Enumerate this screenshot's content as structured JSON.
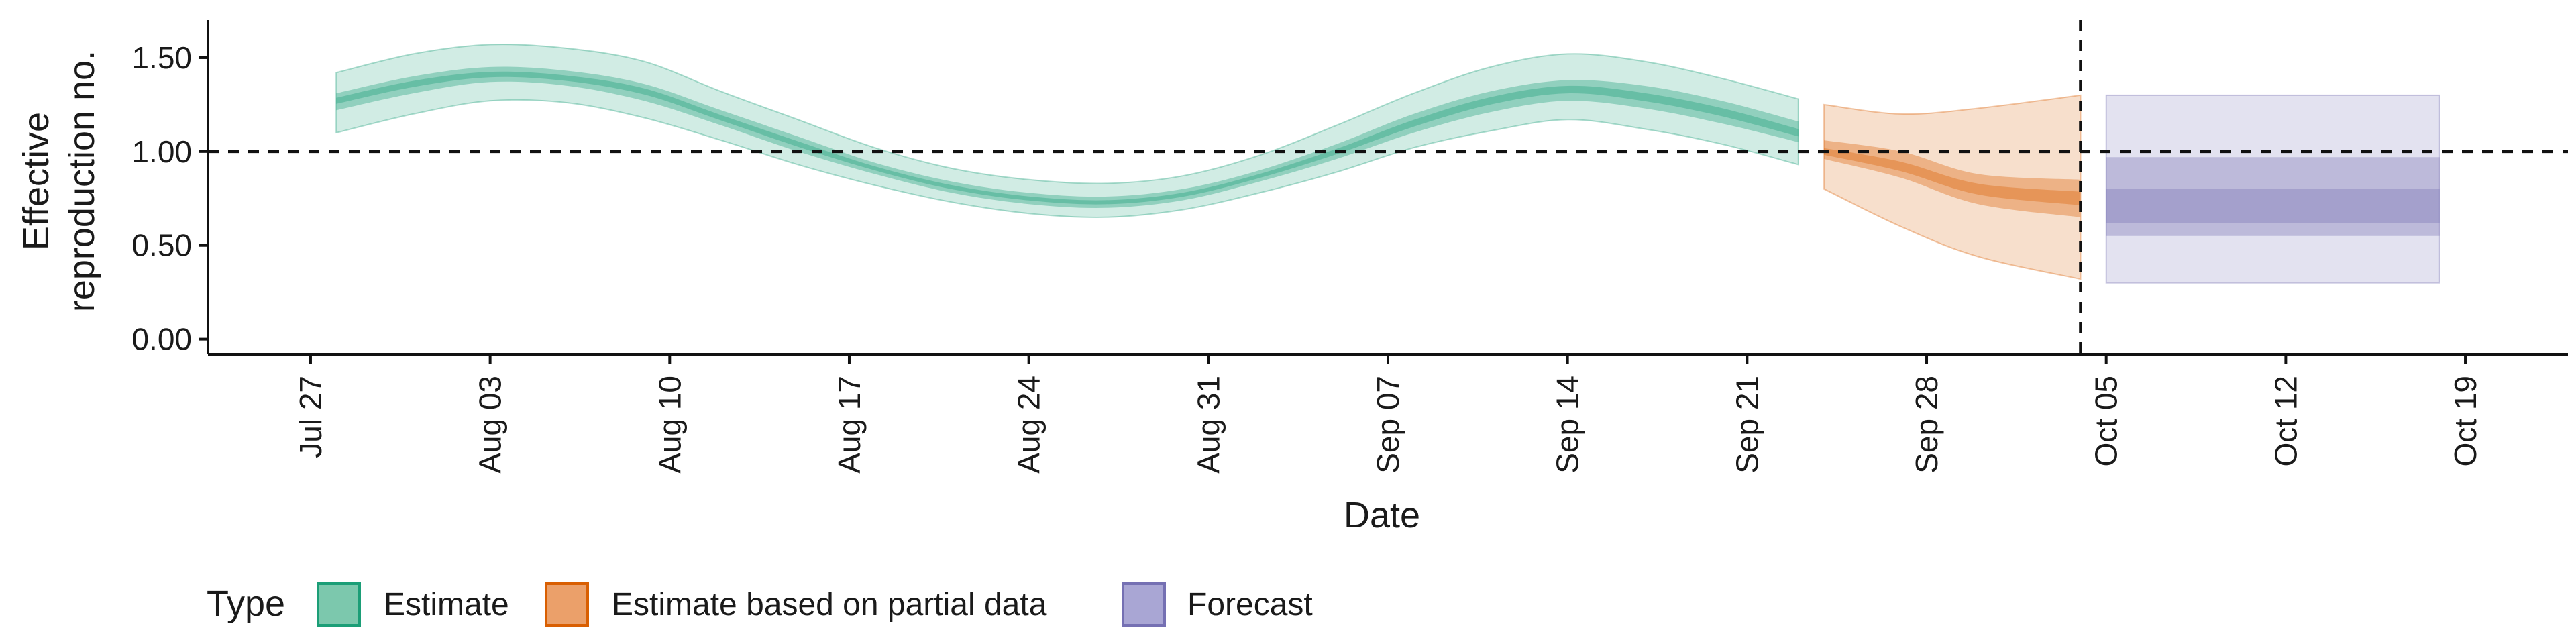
{
  "chart_data": {
    "type": "area",
    "xlabel": "Date",
    "ylabel_lines": [
      "Effective",
      "reproduction no."
    ],
    "x_domain": [
      "2021-07-23",
      "2021-10-23"
    ],
    "ylim": [
      -0.08,
      1.7
    ],
    "y_ticks": [
      0.0,
      0.5,
      1.0,
      1.5
    ],
    "y_tick_labels": [
      "0.00",
      "0.50",
      "1.00",
      "1.50"
    ],
    "x_ticks": [
      "2021-07-27",
      "2021-08-03",
      "2021-08-10",
      "2021-08-17",
      "2021-08-24",
      "2021-08-31",
      "2021-09-07",
      "2021-09-14",
      "2021-09-21",
      "2021-09-28",
      "2021-10-05",
      "2021-10-12",
      "2021-10-19"
    ],
    "x_tick_labels": [
      "Jul 27",
      "Aug 03",
      "Aug 10",
      "Aug 17",
      "Aug 24",
      "Aug 31",
      "Sep 07",
      "Sep 14",
      "Sep 21",
      "Sep 28",
      "Oct 05",
      "Oct 12",
      "Oct 19"
    ],
    "reference_lines": {
      "hline_y": 1.0,
      "vline_x": "2021-10-04"
    },
    "grid": false,
    "legend": {
      "title": "Type",
      "position": "bottom-left",
      "items": [
        {
          "label": "Estimate",
          "fill": "#7cc8ad",
          "stroke": "#1b9e77"
        },
        {
          "label": "Estimate based on partial data",
          "fill": "#eba06a",
          "stroke": "#d95f02"
        },
        {
          "label": "Forecast",
          "fill": "#a9a6d4",
          "stroke": "#7570b3"
        }
      ]
    },
    "series": [
      {
        "name": "Estimate",
        "color": "#1b9e77",
        "x": [
          "2021-07-28",
          "2021-07-31",
          "2021-08-03",
          "2021-08-06",
          "2021-08-09",
          "2021-08-12",
          "2021-08-15",
          "2021-08-18",
          "2021-08-21",
          "2021-08-24",
          "2021-08-27",
          "2021-08-30",
          "2021-09-02",
          "2021-09-05",
          "2021-09-08",
          "2021-09-11",
          "2021-09-14",
          "2021-09-17",
          "2021-09-20",
          "2021-09-23"
        ],
        "median": [
          1.27,
          1.36,
          1.41,
          1.39,
          1.32,
          1.18,
          1.04,
          0.91,
          0.81,
          0.75,
          0.73,
          0.77,
          0.87,
          1.0,
          1.15,
          1.27,
          1.33,
          1.29,
          1.21,
          1.1
        ],
        "lower_50": [
          1.22,
          1.31,
          1.37,
          1.35,
          1.27,
          1.14,
          1.0,
          0.88,
          0.78,
          0.72,
          0.7,
          0.74,
          0.84,
          0.96,
          1.1,
          1.21,
          1.27,
          1.23,
          1.15,
          1.05
        ],
        "upper_50": [
          1.31,
          1.4,
          1.45,
          1.43,
          1.36,
          1.22,
          1.08,
          0.94,
          0.84,
          0.78,
          0.76,
          0.8,
          0.9,
          1.04,
          1.2,
          1.32,
          1.38,
          1.35,
          1.27,
          1.16
        ],
        "lower_90": [
          1.1,
          1.2,
          1.27,
          1.26,
          1.18,
          1.06,
          0.93,
          0.82,
          0.73,
          0.67,
          0.65,
          0.69,
          0.78,
          0.89,
          1.02,
          1.11,
          1.17,
          1.12,
          1.04,
          0.93
        ],
        "upper_90": [
          1.42,
          1.52,
          1.57,
          1.55,
          1.48,
          1.32,
          1.17,
          1.02,
          0.91,
          0.85,
          0.83,
          0.87,
          0.98,
          1.14,
          1.31,
          1.45,
          1.52,
          1.48,
          1.39,
          1.28
        ]
      },
      {
        "name": "Estimate based on partial data",
        "color": "#d95f02",
        "x": [
          "2021-09-24",
          "2021-09-27",
          "2021-09-30",
          "2021-10-04"
        ],
        "median": [
          1.0,
          0.92,
          0.8,
          0.75
        ],
        "lower_50": [
          0.96,
          0.86,
          0.72,
          0.65
        ],
        "upper_50": [
          1.06,
          1.0,
          0.88,
          0.85
        ],
        "lower_90": [
          0.8,
          0.6,
          0.44,
          0.32
        ],
        "upper_90": [
          1.25,
          1.2,
          1.23,
          1.3
        ]
      },
      {
        "name": "Forecast",
        "color": "#7570b3",
        "x": [
          "2021-10-05",
          "2021-10-18"
        ],
        "median": [
          0.7,
          0.7
        ],
        "lower_20": [
          0.62,
          0.62
        ],
        "upper_20": [
          0.8,
          0.8
        ],
        "lower_50": [
          0.55,
          0.55
        ],
        "upper_50": [
          0.97,
          0.97
        ],
        "lower_90": [
          0.3,
          0.3
        ],
        "upper_90": [
          1.3,
          1.3
        ]
      }
    ]
  }
}
